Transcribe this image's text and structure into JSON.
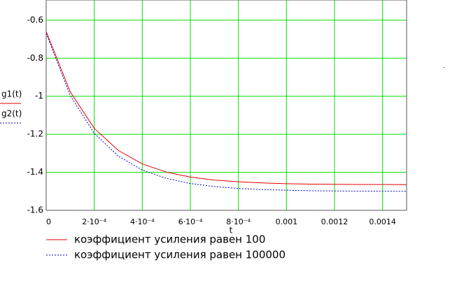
{
  "chart_data": {
    "type": "line",
    "xlabel": "t",
    "x": [
      0,
      0.0001,
      0.0002,
      0.0003,
      0.0004,
      0.0005,
      0.0006,
      0.0007,
      0.0008,
      0.0009,
      0.001,
      0.0011,
      0.0012,
      0.0013,
      0.0014,
      0.0015
    ],
    "series": [
      {
        "name": "коэффициент усиления равен 100",
        "axis_label": "g1(t)",
        "color": "#e00000",
        "dash": "solid",
        "values": [
          -0.66,
          -0.977,
          -1.169,
          -1.285,
          -1.356,
          -1.399,
          -1.425,
          -1.441,
          -1.45,
          -1.456,
          -1.46,
          -1.462,
          -1.463,
          -1.464,
          -1.464,
          -1.465
        ]
      },
      {
        "name": "коэффициент усиления равен 100000",
        "axis_label": "g2(t)",
        "color": "#0000c0",
        "dash": "dotted",
        "values": [
          -0.67,
          -0.997,
          -1.195,
          -1.315,
          -1.388,
          -1.432,
          -1.459,
          -1.475,
          -1.485,
          -1.491,
          -1.494,
          -1.497,
          -1.498,
          -1.499,
          -1.499,
          -1.5
        ]
      }
    ],
    "xlim": [
      0,
      0.0015
    ],
    "ylim": [
      -1.6,
      -0.494
    ],
    "xticks": [
      0,
      {
        "value": 0.0002,
        "label": "2·10⁻⁴"
      },
      {
        "value": 0.0004,
        "label": "4·10⁻⁴"
      },
      {
        "value": 0.0006,
        "label": "6·10⁻⁴"
      },
      {
        "value": 0.0008,
        "label": "8·10⁻⁴"
      },
      0.001,
      0.0012,
      0.0014
    ],
    "yticks": [
      -0.6,
      -0.8,
      -1,
      -1.2,
      -1.4,
      -1.6
    ],
    "grid": true,
    "grid_color": "#00e000"
  }
}
